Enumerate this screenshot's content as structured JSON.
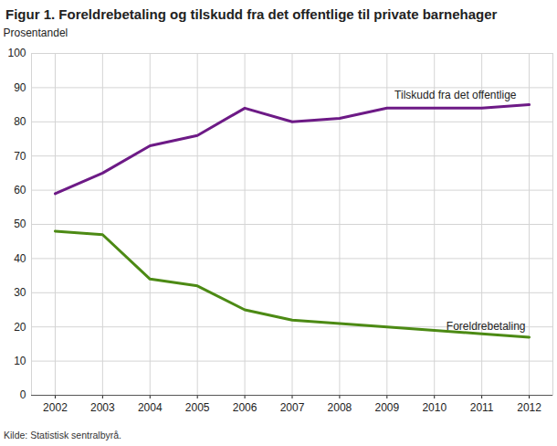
{
  "chart_data": {
    "type": "line",
    "title": "Figur 1. Foreldrebetaling og tilskudd fra det offentlige til private barnehager",
    "y_label": "Prosentandel",
    "source": "Kilde: Statistisk sentralbyrå.",
    "x": [
      2002,
      2003,
      2004,
      2005,
      2006,
      2007,
      2008,
      2009,
      2010,
      2011,
      2012
    ],
    "series": [
      {
        "name": "Tilskudd fra det offentlige",
        "color": "#6d1a86",
        "values": [
          59,
          65,
          73,
          76,
          84,
          80,
          81,
          84,
          84,
          84,
          85
        ]
      },
      {
        "name": "Foreldrebetaling",
        "color": "#4c8a14",
        "values": [
          48,
          47,
          34,
          32,
          25,
          22,
          21,
          20,
          19,
          18,
          17
        ]
      }
    ],
    "xlim": [
      2001.5,
      2012.5
    ],
    "xticks": [
      2002,
      2003,
      2004,
      2005,
      2006,
      2007,
      2008,
      2009,
      2010,
      2011,
      2012
    ],
    "ylim": [
      0,
      100
    ],
    "yticks": [
      0,
      10,
      20,
      30,
      40,
      50,
      60,
      70,
      80,
      90,
      100
    ],
    "grid": true
  }
}
